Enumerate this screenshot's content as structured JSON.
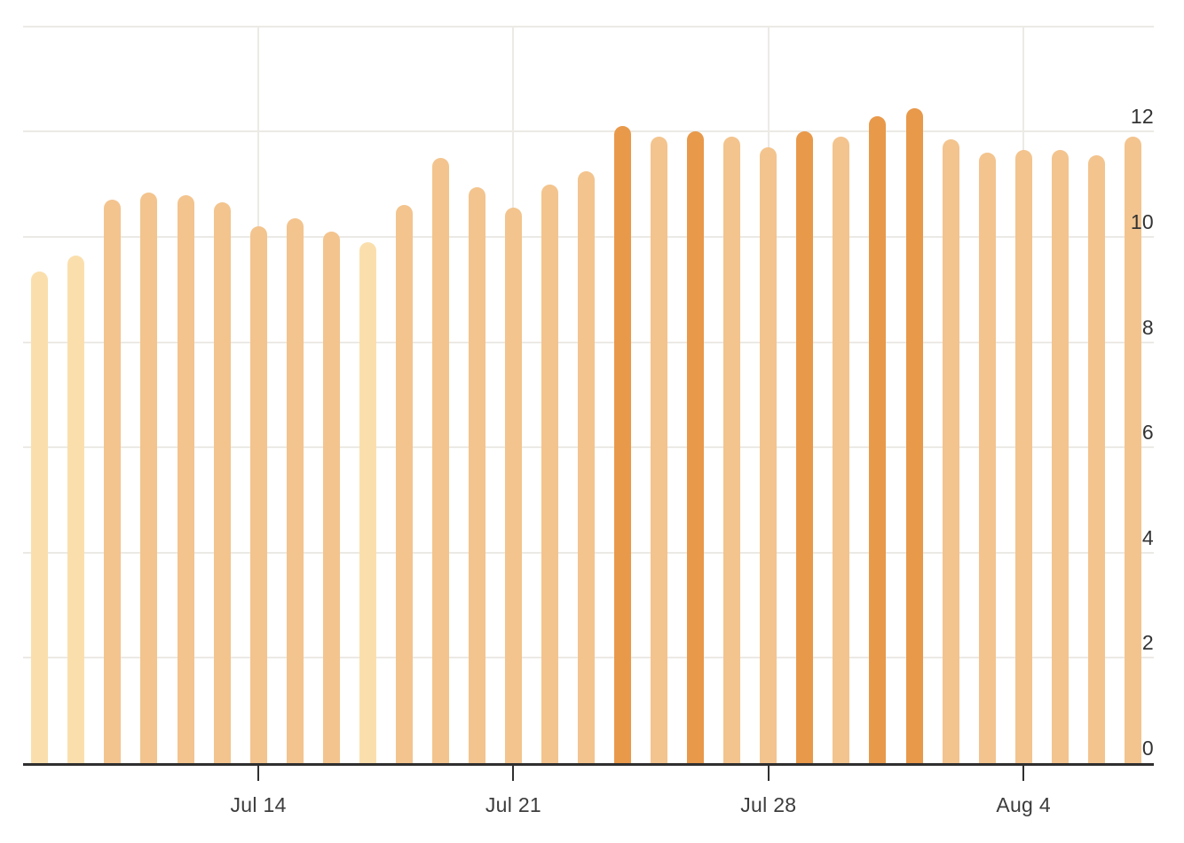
{
  "chart_data": {
    "type": "bar",
    "title": "",
    "subtitle": "",
    "legend": "none",
    "grid": true,
    "dates": [
      "Jul 8",
      "Jul 9",
      "Jul 10",
      "Jul 11",
      "Jul 12",
      "Jul 13",
      "Jul 14",
      "Jul 15",
      "Jul 16",
      "Jul 17",
      "Jul 18",
      "Jul 19",
      "Jul 20",
      "Jul 21",
      "Jul 22",
      "Jul 23",
      "Jul 24",
      "Jul 25",
      "Jul 26",
      "Jul 27",
      "Jul 28",
      "Jul 29",
      "Jul 30",
      "Jul 31",
      "Aug 1",
      "Aug 2",
      "Aug 3",
      "Aug 4",
      "Aug 5",
      "Aug 6",
      "Aug 7"
    ],
    "values": [
      9.35,
      9.65,
      10.7,
      10.85,
      10.8,
      10.65,
      10.2,
      10.35,
      10.1,
      9.9,
      10.6,
      11.5,
      10.95,
      10.55,
      11.0,
      11.25,
      12.1,
      11.9,
      12.0,
      11.9,
      11.7,
      12.0,
      11.9,
      12.3,
      12.45,
      11.85,
      11.6,
      11.65,
      11.65,
      11.55,
      11.9
    ],
    "x_axis": {
      "tick_labels": [
        "Jul 14",
        "Jul 21",
        "Jul 28",
        "Aug 4"
      ],
      "tick_indices": [
        6,
        13,
        20,
        27
      ]
    },
    "y_axis": {
      "side": "right",
      "tick_labels": [
        "0",
        "2",
        "4",
        "6",
        "8",
        "10",
        "12"
      ],
      "tick_values": [
        0,
        2,
        4,
        6,
        8,
        10,
        12
      ],
      "ylim": [
        0,
        14
      ]
    },
    "colors": {
      "background": "#FFFFFF",
      "grid": "#ECEAE5",
      "axis": "#2F2F2F",
      "x_tick_label": "#3C3C3C",
      "y_tick_label": "#333333",
      "bar_thresholds": [
        10,
        12
      ],
      "bar_palette": [
        "#FADFAD",
        "#F3C48E",
        "#E8994A"
      ]
    }
  }
}
